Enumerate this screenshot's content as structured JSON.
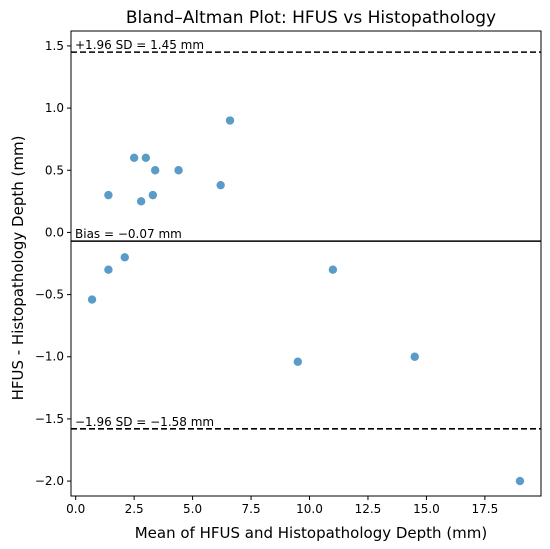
{
  "chart_data": {
    "type": "scatter",
    "title": "Bland–Altman Plot: HFUS vs Histopathology",
    "xlabel": "Mean of HFUS and Histopathology Depth (mm)",
    "ylabel": "HFUS - Histopathology Depth (mm)",
    "xlim": [
      -0.2,
      19.9
    ],
    "ylim": [
      -2.12,
      1.62
    ],
    "xticks": [
      0.0,
      2.5,
      5.0,
      7.5,
      10.0,
      12.5,
      15.0,
      17.5
    ],
    "xtick_labels": [
      "0.0",
      "2.5",
      "5.0",
      "7.5",
      "10.0",
      "12.5",
      "15.0",
      "17.5"
    ],
    "yticks": [
      -2.0,
      -1.5,
      -1.0,
      -0.5,
      0.0,
      0.5,
      1.0,
      1.5
    ],
    "ytick_labels": [
      "−2.0",
      "−1.5",
      "−1.0",
      "−0.5",
      "0.0",
      "0.5",
      "1.0",
      "1.5"
    ],
    "grid": false,
    "point_color": "#5b9bc8",
    "points": [
      {
        "x": 0.7,
        "y": -0.54
      },
      {
        "x": 1.4,
        "y": 0.3
      },
      {
        "x": 1.4,
        "y": -0.3
      },
      {
        "x": 2.1,
        "y": -0.2
      },
      {
        "x": 2.5,
        "y": 0.6
      },
      {
        "x": 2.8,
        "y": 0.25
      },
      {
        "x": 3.0,
        "y": 0.6
      },
      {
        "x": 3.3,
        "y": 0.3
      },
      {
        "x": 3.4,
        "y": 0.5
      },
      {
        "x": 4.4,
        "y": 0.5
      },
      {
        "x": 6.2,
        "y": 0.38
      },
      {
        "x": 6.6,
        "y": 0.9
      },
      {
        "x": 9.5,
        "y": -1.04
      },
      {
        "x": 11.0,
        "y": -0.3
      },
      {
        "x": 14.5,
        "y": -1.0
      },
      {
        "x": 19.0,
        "y": -2.0
      }
    ],
    "lines": [
      {
        "name": "upper-loa",
        "y": 1.45,
        "style": "dashed",
        "label": "+1.96 SD = 1.45 mm"
      },
      {
        "name": "bias",
        "y": -0.07,
        "style": "solid",
        "label": "Bias = −0.07 mm"
      },
      {
        "name": "lower-loa",
        "y": -1.58,
        "style": "dashed",
        "label": "−1.96 SD = −1.58 mm"
      }
    ]
  }
}
